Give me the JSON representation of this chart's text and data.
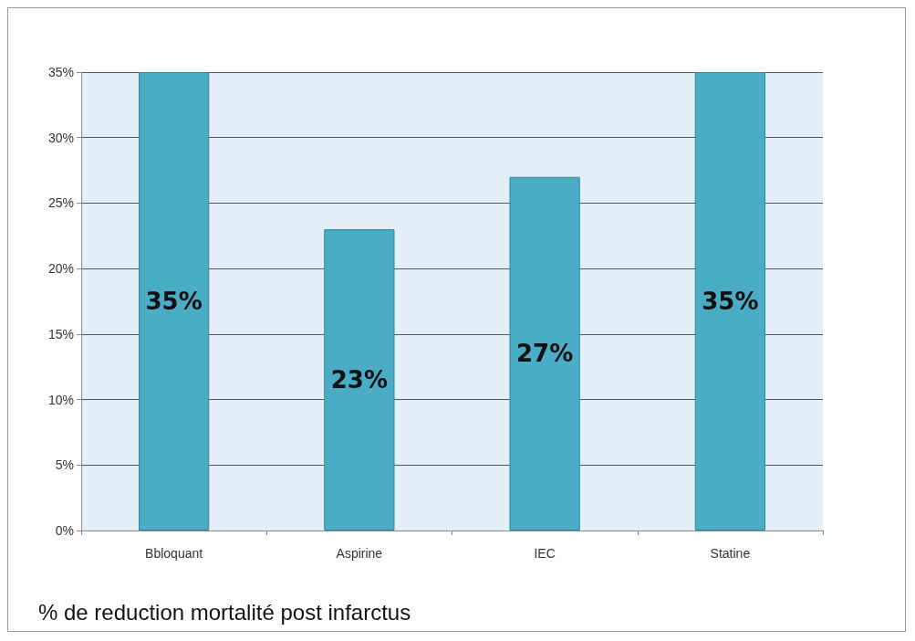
{
  "chart_data": {
    "type": "bar",
    "title": "% de reduction mortalité post infarctus",
    "categories": [
      "Bbloquant",
      "Aspirine",
      "IEC",
      "Statine"
    ],
    "values": [
      35,
      23,
      27,
      35
    ],
    "value_labels": [
      "35%",
      "23%",
      "27%",
      "35%"
    ],
    "color": "#4bacc6",
    "ylim": [
      0,
      35
    ],
    "yticks": [
      {
        "value": 0,
        "label": "0%"
      },
      {
        "value": 5,
        "label": "5%"
      },
      {
        "value": 10,
        "label": "10%"
      },
      {
        "value": 15,
        "label": "15%"
      },
      {
        "value": 20,
        "label": "20%"
      },
      {
        "value": 25,
        "label": "25%"
      },
      {
        "value": 30,
        "label": "30%"
      },
      {
        "value": 35,
        "label": "35%"
      }
    ],
    "grid": true
  }
}
